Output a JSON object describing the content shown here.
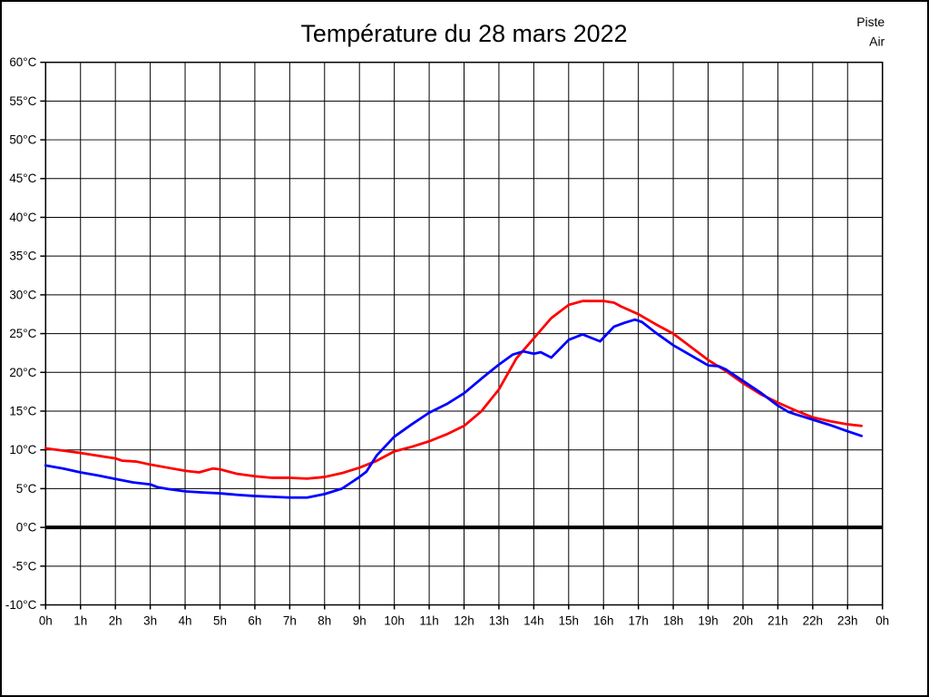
{
  "chart_data": {
    "type": "line",
    "title": "Température du 28 mars 2022",
    "x_axis": {
      "min": 0,
      "max": 24,
      "tick_step_hours": 1,
      "tick_labels": [
        "0h",
        "1h",
        "2h",
        "3h",
        "4h",
        "5h",
        "6h",
        "7h",
        "8h",
        "9h",
        "10h",
        "11h",
        "12h",
        "13h",
        "14h",
        "15h",
        "16h",
        "17h",
        "18h",
        "19h",
        "20h",
        "21h",
        "22h",
        "23h",
        "0h"
      ]
    },
    "y_axis": {
      "min": -10,
      "max": 60,
      "tick_step": 5,
      "unit": "°C",
      "tick_labels": [
        "60°C",
        "55°C",
        "50°C",
        "45°C",
        "40°C",
        "35°C",
        "30°C",
        "25°C",
        "20°C",
        "15°C",
        "10°C",
        "5°C",
        "0°C",
        "-5°C",
        "-10°C"
      ]
    },
    "grid": true,
    "zero_line_value": 0,
    "zero_line_color": "#000000",
    "grid_color": "#000000",
    "legend": {
      "position": "top-right",
      "entries": [
        {
          "label": "Piste",
          "color": "#ff0000"
        },
        {
          "label": "Air",
          "color": "#0000ff"
        }
      ]
    },
    "series": [
      {
        "name": "Piste",
        "color": "#ff0000",
        "points": [
          [
            0,
            10.2
          ],
          [
            0.5,
            9.9
          ],
          [
            1,
            9.6
          ],
          [
            1.5,
            9.25
          ],
          [
            2,
            8.9
          ],
          [
            2.2,
            8.6
          ],
          [
            2.6,
            8.5
          ],
          [
            3,
            8.1
          ],
          [
            3.5,
            7.7
          ],
          [
            4,
            7.3
          ],
          [
            4.4,
            7.1
          ],
          [
            4.8,
            7.6
          ],
          [
            5,
            7.5
          ],
          [
            5.5,
            6.9
          ],
          [
            6,
            6.6
          ],
          [
            6.5,
            6.4
          ],
          [
            7,
            6.4
          ],
          [
            7.5,
            6.3
          ],
          [
            8,
            6.5
          ],
          [
            8.5,
            7.0
          ],
          [
            9,
            7.7
          ],
          [
            9.5,
            8.6
          ],
          [
            10,
            9.8
          ],
          [
            10.5,
            10.4
          ],
          [
            11,
            11.1
          ],
          [
            11.5,
            12.0
          ],
          [
            12,
            13.1
          ],
          [
            12.5,
            15.0
          ],
          [
            13,
            17.8
          ],
          [
            13.5,
            21.8
          ],
          [
            14,
            24.4
          ],
          [
            14.5,
            27.0
          ],
          [
            15,
            28.7
          ],
          [
            15.4,
            29.2
          ],
          [
            16,
            29.2
          ],
          [
            16.3,
            29.0
          ],
          [
            16.5,
            28.5
          ],
          [
            17,
            27.5
          ],
          [
            17.5,
            26.2
          ],
          [
            18,
            25.0
          ],
          [
            18.5,
            23.3
          ],
          [
            19,
            21.6
          ],
          [
            19.5,
            20.2
          ],
          [
            20,
            18.6
          ],
          [
            20.5,
            17.2
          ],
          [
            21,
            16.1
          ],
          [
            21.5,
            15.1
          ],
          [
            22,
            14.2
          ],
          [
            22.5,
            13.7
          ],
          [
            23,
            13.3
          ],
          [
            23.4,
            13.1
          ]
        ]
      },
      {
        "name": "Air",
        "color": "#0000ff",
        "points": [
          [
            0,
            8.0
          ],
          [
            0.5,
            7.6
          ],
          [
            1,
            7.1
          ],
          [
            1.5,
            6.7
          ],
          [
            2,
            6.25
          ],
          [
            2.5,
            5.8
          ],
          [
            3,
            5.55
          ],
          [
            3.2,
            5.2
          ],
          [
            3.5,
            4.95
          ],
          [
            4,
            4.65
          ],
          [
            4.5,
            4.5
          ],
          [
            5,
            4.4
          ],
          [
            5.5,
            4.2
          ],
          [
            6,
            4.05
          ],
          [
            6.5,
            3.95
          ],
          [
            7,
            3.85
          ],
          [
            7.5,
            3.85
          ],
          [
            8,
            4.3
          ],
          [
            8.5,
            5.0
          ],
          [
            9,
            6.5
          ],
          [
            9.2,
            7.2
          ],
          [
            9.5,
            9.3
          ],
          [
            10,
            11.7
          ],
          [
            10.5,
            13.3
          ],
          [
            11,
            14.8
          ],
          [
            11.5,
            15.9
          ],
          [
            12,
            17.3
          ],
          [
            12.5,
            19.2
          ],
          [
            13,
            21.0
          ],
          [
            13.4,
            22.3
          ],
          [
            13.7,
            22.7
          ],
          [
            14,
            22.4
          ],
          [
            14.2,
            22.6
          ],
          [
            14.5,
            21.9
          ],
          [
            15,
            24.2
          ],
          [
            15.4,
            24.9
          ],
          [
            15.9,
            24.0
          ],
          [
            16.3,
            25.9
          ],
          [
            16.6,
            26.4
          ],
          [
            16.9,
            26.8
          ],
          [
            17.1,
            26.5
          ],
          [
            17.5,
            25.1
          ],
          [
            18,
            23.5
          ],
          [
            18.5,
            22.2
          ],
          [
            19,
            20.9
          ],
          [
            19.3,
            20.8
          ],
          [
            19.5,
            20.4
          ],
          [
            20,
            18.9
          ],
          [
            20.5,
            17.4
          ],
          [
            21,
            15.7
          ],
          [
            21.3,
            14.9
          ],
          [
            21.5,
            14.6
          ],
          [
            22,
            13.9
          ],
          [
            22.5,
            13.2
          ],
          [
            23,
            12.4
          ],
          [
            23.4,
            11.8
          ]
        ]
      }
    ]
  }
}
